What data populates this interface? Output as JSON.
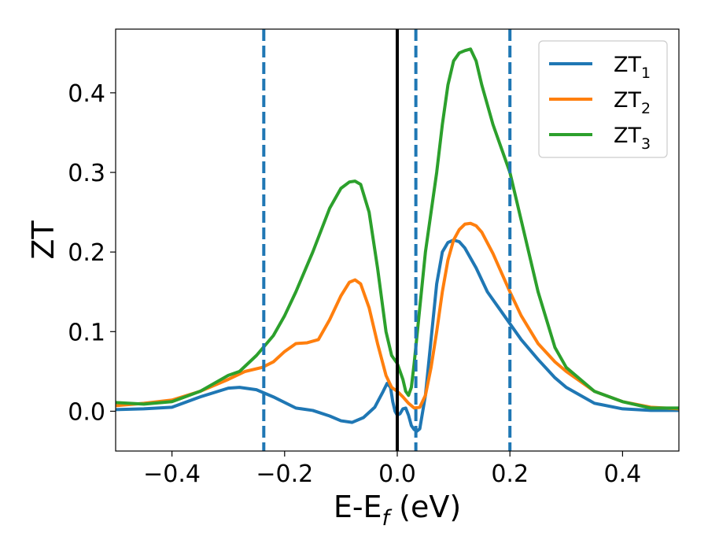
{
  "chart_data": {
    "type": "line",
    "xlabel": {
      "main": "E-E",
      "sub": "f",
      "suffix": " (eV)"
    },
    "ylabel": "ZT",
    "xlim": [
      -0.5,
      0.5
    ],
    "ylim": [
      -0.05,
      0.48
    ],
    "xticks": [
      -0.4,
      -0.2,
      0.0,
      0.2,
      0.4
    ],
    "xtick_labels": [
      "−0.4",
      "−0.2",
      "0.0",
      "0.2",
      "0.4"
    ],
    "yticks": [
      0.0,
      0.1,
      0.2,
      0.3,
      0.4
    ],
    "ytick_labels": [
      "0.0",
      "0.1",
      "0.2",
      "0.3",
      "0.4"
    ],
    "grid": false,
    "legend_position": "top-right",
    "vlines": [
      {
        "x": 0.0,
        "style": "solid",
        "color": "#000000"
      },
      {
        "x": -0.237,
        "style": "dashed",
        "color": "#1f77b4"
      },
      {
        "x": 0.033,
        "style": "dashed",
        "color": "#1f77b4"
      },
      {
        "x": 0.2,
        "style": "dashed",
        "color": "#1f77b4"
      }
    ],
    "series": [
      {
        "name": "ZT",
        "name_sub": "1",
        "color": "#1f77b4",
        "x": [
          -0.5,
          -0.45,
          -0.4,
          -0.35,
          -0.3,
          -0.28,
          -0.25,
          -0.22,
          -0.18,
          -0.15,
          -0.12,
          -0.1,
          -0.08,
          -0.06,
          -0.04,
          -0.025,
          -0.018,
          -0.012,
          -0.008,
          -0.004,
          0.0,
          0.005,
          0.01,
          0.015,
          0.02,
          0.025,
          0.03,
          0.035,
          0.04,
          0.05,
          0.06,
          0.07,
          0.08,
          0.09,
          0.1,
          0.11,
          0.12,
          0.14,
          0.16,
          0.18,
          0.2,
          0.22,
          0.25,
          0.28,
          0.3,
          0.35,
          0.4,
          0.45,
          0.5
        ],
        "y": [
          0.002,
          0.003,
          0.005,
          0.018,
          0.029,
          0.03,
          0.027,
          0.018,
          0.004,
          0.001,
          -0.006,
          -0.012,
          -0.014,
          -0.008,
          0.005,
          0.025,
          0.035,
          0.03,
          0.012,
          0.0,
          -0.005,
          -0.003,
          0.003,
          0.004,
          -0.005,
          -0.018,
          -0.023,
          -0.025,
          -0.022,
          0.02,
          0.09,
          0.16,
          0.2,
          0.212,
          0.215,
          0.213,
          0.205,
          0.18,
          0.15,
          0.13,
          0.11,
          0.09,
          0.065,
          0.042,
          0.03,
          0.01,
          0.003,
          0.001,
          0.001
        ]
      },
      {
        "name": "ZT",
        "name_sub": "2",
        "color": "#ff7f0e",
        "x": [
          -0.5,
          -0.45,
          -0.4,
          -0.35,
          -0.3,
          -0.27,
          -0.24,
          -0.22,
          -0.2,
          -0.18,
          -0.16,
          -0.14,
          -0.12,
          -0.1,
          -0.085,
          -0.075,
          -0.065,
          -0.05,
          -0.035,
          -0.02,
          -0.01,
          0.0,
          0.01,
          0.02,
          0.03,
          0.04,
          0.05,
          0.06,
          0.07,
          0.08,
          0.09,
          0.1,
          0.11,
          0.12,
          0.13,
          0.14,
          0.15,
          0.17,
          0.2,
          0.22,
          0.25,
          0.28,
          0.3,
          0.35,
          0.4,
          0.45,
          0.5
        ],
        "y": [
          0.007,
          0.01,
          0.014,
          0.025,
          0.04,
          0.05,
          0.055,
          0.062,
          0.075,
          0.085,
          0.086,
          0.09,
          0.115,
          0.145,
          0.162,
          0.165,
          0.16,
          0.13,
          0.085,
          0.045,
          0.03,
          0.025,
          0.018,
          0.01,
          0.004,
          0.005,
          0.02,
          0.055,
          0.1,
          0.15,
          0.19,
          0.215,
          0.228,
          0.235,
          0.236,
          0.233,
          0.225,
          0.198,
          0.15,
          0.12,
          0.085,
          0.062,
          0.05,
          0.025,
          0.012,
          0.005,
          0.003
        ]
      },
      {
        "name": "ZT",
        "name_sub": "3",
        "color": "#2ca02c",
        "x": [
          -0.5,
          -0.45,
          -0.4,
          -0.35,
          -0.3,
          -0.28,
          -0.25,
          -0.22,
          -0.2,
          -0.18,
          -0.15,
          -0.12,
          -0.1,
          -0.085,
          -0.075,
          -0.065,
          -0.05,
          -0.035,
          -0.02,
          -0.01,
          0.0,
          0.01,
          0.015,
          0.02,
          0.025,
          0.03,
          0.04,
          0.05,
          0.06,
          0.07,
          0.08,
          0.09,
          0.1,
          0.11,
          0.12,
          0.13,
          0.14,
          0.15,
          0.17,
          0.2,
          0.22,
          0.25,
          0.28,
          0.3,
          0.35,
          0.4,
          0.45,
          0.5
        ],
        "y": [
          0.011,
          0.009,
          0.012,
          0.025,
          0.045,
          0.05,
          0.07,
          0.095,
          0.12,
          0.15,
          0.2,
          0.255,
          0.28,
          0.288,
          0.289,
          0.285,
          0.25,
          0.18,
          0.1,
          0.07,
          0.06,
          0.04,
          0.025,
          0.02,
          0.03,
          0.06,
          0.13,
          0.2,
          0.25,
          0.3,
          0.36,
          0.41,
          0.44,
          0.45,
          0.453,
          0.455,
          0.44,
          0.41,
          0.36,
          0.3,
          0.24,
          0.15,
          0.08,
          0.055,
          0.025,
          0.012,
          0.004,
          0.004
        ]
      }
    ]
  }
}
